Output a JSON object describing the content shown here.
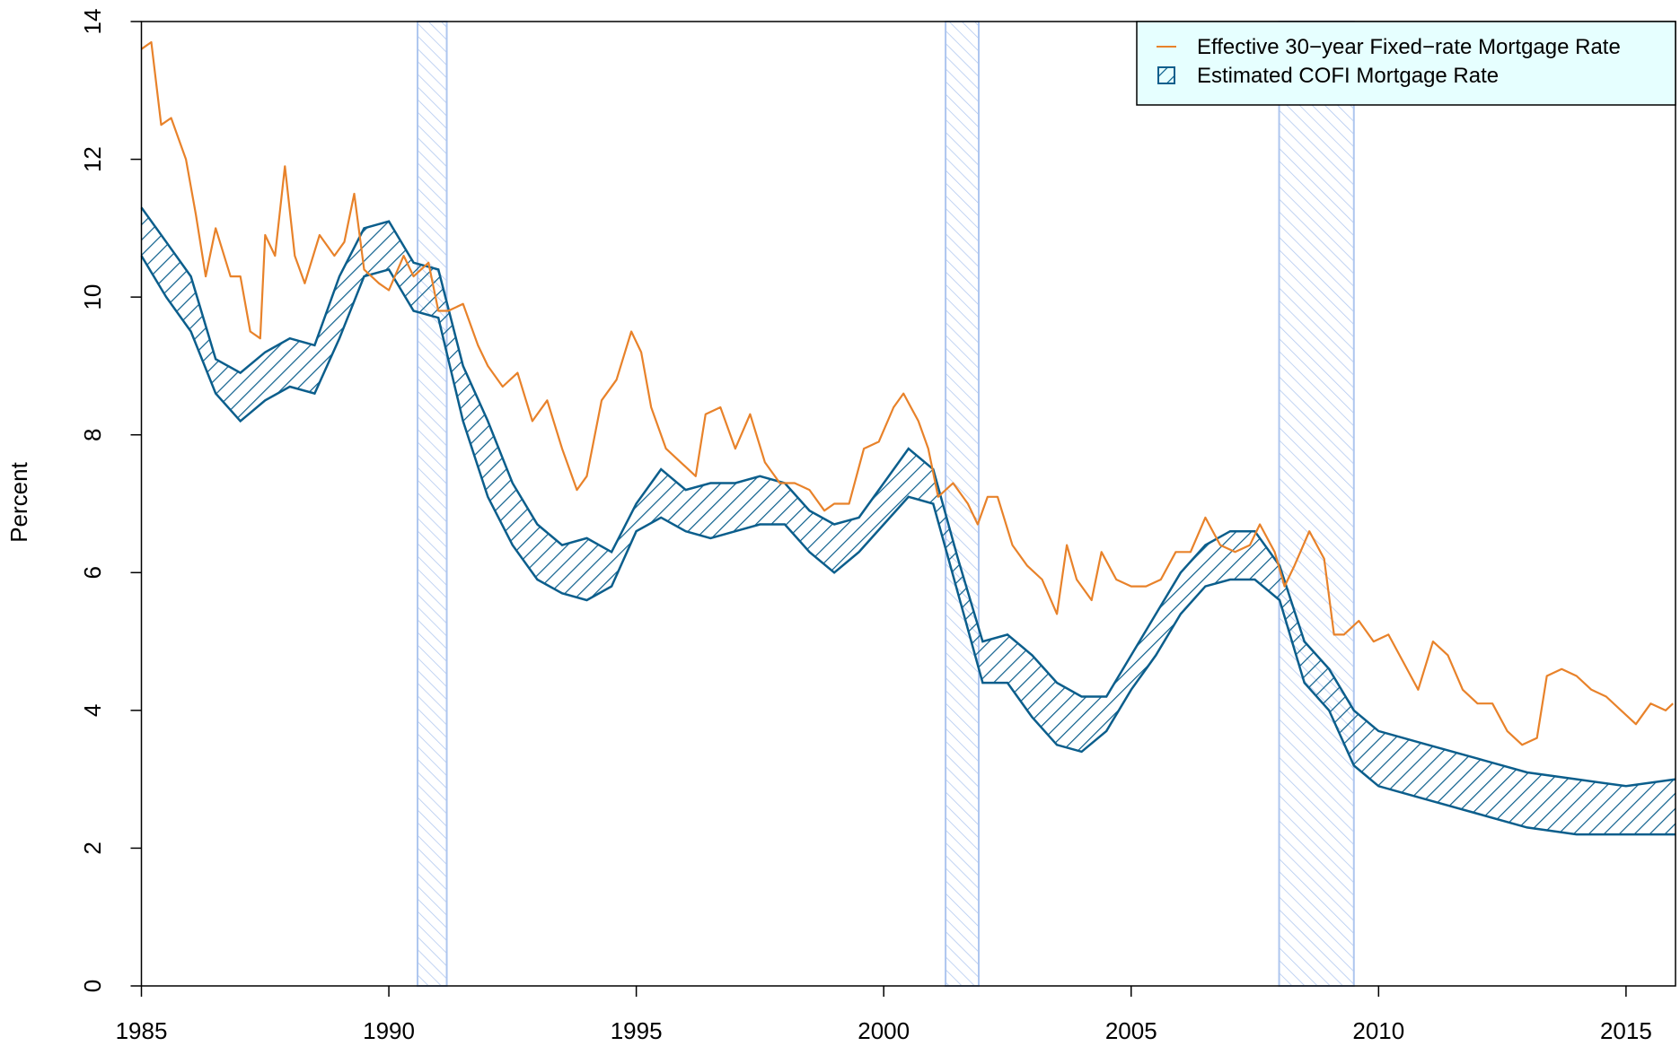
{
  "chart_data": {
    "type": "line",
    "ylabel": "Percent",
    "xlim": [
      1985,
      2016
    ],
    "ylim": [
      0,
      14
    ],
    "xticks": [
      1985,
      1990,
      1995,
      2000,
      2005,
      2010,
      2015
    ],
    "yticks": [
      0,
      2,
      4,
      6,
      8,
      10,
      12,
      14
    ],
    "legend": "topright",
    "legend_background": "#e6ffff",
    "recessions": [
      [
        1990.58,
        1991.17
      ],
      [
        2001.25,
        2001.92
      ],
      [
        2007.99,
        2009.5
      ]
    ],
    "recession_color": "#aec6ef",
    "series": [
      {
        "name": "Effective 30−year Fixed−rate Mortgage Rate",
        "type": "line",
        "color": "#e8822a",
        "x": [
          1985.0,
          1985.2,
          1985.4,
          1985.6,
          1985.9,
          1986.1,
          1986.3,
          1986.5,
          1986.8,
          1987.0,
          1987.2,
          1987.4,
          1987.5,
          1987.7,
          1987.9,
          1988.1,
          1988.3,
          1988.6,
          1988.9,
          1989.1,
          1989.3,
          1989.5,
          1989.8,
          1990.0,
          1990.3,
          1990.5,
          1990.8,
          1991.0,
          1991.2,
          1991.5,
          1991.8,
          1992.0,
          1992.3,
          1992.6,
          1992.9,
          1993.2,
          1993.5,
          1993.8,
          1994.0,
          1994.3,
          1994.6,
          1994.9,
          1995.1,
          1995.3,
          1995.6,
          1995.9,
          1996.2,
          1996.4,
          1996.7,
          1997.0,
          1997.3,
          1997.6,
          1997.9,
          1998.2,
          1998.5,
          1998.8,
          1999.0,
          1999.3,
          1999.6,
          1999.9,
          2000.2,
          2000.4,
          2000.7,
          2000.9,
          2001.1,
          2001.4,
          2001.7,
          2001.9,
          2002.1,
          2002.3,
          2002.6,
          2002.9,
          2003.2,
          2003.5,
          2003.7,
          2003.9,
          2004.2,
          2004.4,
          2004.7,
          2005.0,
          2005.3,
          2005.6,
          2005.9,
          2006.2,
          2006.5,
          2006.8,
          2007.1,
          2007.4,
          2007.6,
          2007.9,
          2008.1,
          2008.3,
          2008.6,
          2008.9,
          2009.1,
          2009.3,
          2009.6,
          2009.9,
          2010.2,
          2010.5,
          2010.8,
          2011.1,
          2011.4,
          2011.7,
          2012.0,
          2012.3,
          2012.6,
          2012.9,
          2013.2,
          2013.4,
          2013.7,
          2014.0,
          2014.3,
          2014.6,
          2014.9,
          2015.2,
          2015.5,
          2015.8,
          2015.95
        ],
        "values": [
          13.6,
          13.7,
          12.5,
          12.6,
          12.0,
          11.2,
          10.3,
          11.0,
          10.3,
          10.3,
          9.5,
          9.4,
          10.9,
          10.6,
          11.9,
          10.6,
          10.2,
          10.9,
          10.6,
          10.8,
          11.5,
          10.4,
          10.2,
          10.1,
          10.6,
          10.3,
          10.5,
          9.8,
          9.8,
          9.9,
          9.3,
          9.0,
          8.7,
          8.9,
          8.2,
          8.5,
          7.8,
          7.2,
          7.4,
          8.5,
          8.8,
          9.5,
          9.2,
          8.4,
          7.8,
          7.6,
          7.4,
          8.3,
          8.4,
          7.8,
          8.3,
          7.6,
          7.3,
          7.3,
          7.2,
          6.9,
          7.0,
          7.0,
          7.8,
          7.9,
          8.4,
          8.6,
          8.2,
          7.8,
          7.1,
          7.3,
          7.0,
          6.7,
          7.1,
          7.1,
          6.4,
          6.1,
          5.9,
          5.4,
          6.4,
          5.9,
          5.6,
          6.3,
          5.9,
          5.8,
          5.8,
          5.9,
          6.3,
          6.3,
          6.8,
          6.4,
          6.3,
          6.4,
          6.7,
          6.3,
          5.8,
          6.1,
          6.6,
          6.2,
          5.1,
          5.1,
          5.3,
          5.0,
          5.1,
          4.7,
          4.3,
          5.0,
          4.8,
          4.3,
          4.1,
          4.1,
          3.7,
          3.5,
          3.6,
          4.5,
          4.6,
          4.5,
          4.3,
          4.2,
          4.0,
          3.8,
          4.1,
          4.0,
          4.1
        ]
      },
      {
        "name": "Estimated COFI Mortgage Rate",
        "type": "band",
        "color": "#0b5e8c",
        "x": [
          1985.0,
          1985.5,
          1986.0,
          1986.5,
          1987.0,
          1987.5,
          1988.0,
          1988.5,
          1989.0,
          1989.5,
          1990.0,
          1990.5,
          1991.0,
          1991.5,
          1992.0,
          1992.5,
          1993.0,
          1993.5,
          1994.0,
          1994.5,
          1995.0,
          1995.5,
          1996.0,
          1996.5,
          1997.0,
          1997.5,
          1998.0,
          1998.5,
          1999.0,
          1999.5,
          2000.0,
          2000.5,
          2001.0,
          2001.5,
          2002.0,
          2002.5,
          2003.0,
          2003.5,
          2004.0,
          2004.5,
          2005.0,
          2005.5,
          2006.0,
          2006.5,
          2007.0,
          2007.5,
          2008.0,
          2008.5,
          2009.0,
          2009.5,
          2010.0,
          2011.0,
          2012.0,
          2013.0,
          2014.0,
          2015.0,
          2016.0
        ],
        "upper": [
          11.3,
          10.8,
          10.3,
          9.1,
          8.9,
          9.2,
          9.4,
          9.3,
          10.3,
          11.0,
          11.1,
          10.5,
          10.4,
          9.0,
          8.2,
          7.3,
          6.7,
          6.4,
          6.5,
          6.3,
          7.0,
          7.5,
          7.2,
          7.3,
          7.3,
          7.4,
          7.3,
          6.9,
          6.7,
          6.8,
          7.3,
          7.8,
          7.5,
          6.2,
          5.0,
          5.1,
          4.8,
          4.4,
          4.2,
          4.2,
          4.8,
          5.4,
          6.0,
          6.4,
          6.6,
          6.6,
          6.1,
          5.0,
          4.6,
          4.0,
          3.7,
          3.5,
          3.3,
          3.1,
          3.0,
          2.9,
          3.0
        ],
        "values": [
          10.6,
          10.0,
          9.5,
          8.6,
          8.2,
          8.5,
          8.7,
          8.6,
          9.4,
          10.3,
          10.4,
          9.8,
          9.7,
          8.2,
          7.1,
          6.4,
          5.9,
          5.7,
          5.6,
          5.8,
          6.6,
          6.8,
          6.6,
          6.5,
          6.6,
          6.7,
          6.7,
          6.3,
          6.0,
          6.3,
          6.7,
          7.1,
          7.0,
          5.7,
          4.4,
          4.4,
          3.9,
          3.5,
          3.4,
          3.7,
          4.3,
          4.8,
          5.4,
          5.8,
          5.9,
          5.9,
          5.6,
          4.4,
          4.0,
          3.2,
          2.9,
          2.7,
          2.5,
          2.3,
          2.2,
          2.2,
          2.2
        ]
      }
    ]
  }
}
